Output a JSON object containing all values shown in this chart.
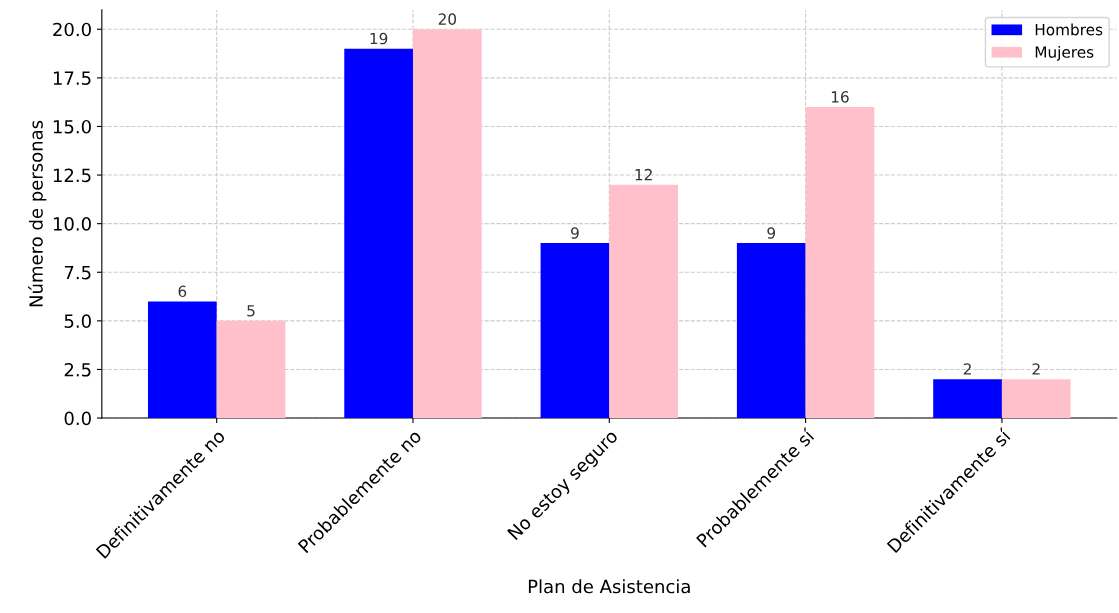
{
  "chart_data": {
    "type": "bar",
    "xlabel": "Plan de Asistencia",
    "ylabel": "Número de personas",
    "categories": [
      "Definitivamente no",
      "Probablemente no",
      "No estoy seguro",
      "Probablemente sí",
      "Definitivamente sí"
    ],
    "series": [
      {
        "name": "Hombres",
        "color": "#0000ff",
        "values": [
          6,
          19,
          9,
          9,
          2
        ]
      },
      {
        "name": "Mujeres",
        "color": "#ffc0cb",
        "values": [
          5,
          20,
          12,
          16,
          2
        ]
      }
    ],
    "ylim": [
      0,
      21
    ],
    "yticks": [
      {
        "value": 0,
        "label": "0.0"
      },
      {
        "value": 2.5,
        "label": "2.5"
      },
      {
        "value": 5,
        "label": "5.0"
      },
      {
        "value": 7.5,
        "label": "7.5"
      },
      {
        "value": 10,
        "label": "10.0"
      },
      {
        "value": 12.5,
        "label": "12.5"
      },
      {
        "value": 15,
        "label": "15.0"
      },
      {
        "value": 17.5,
        "label": "17.5"
      },
      {
        "value": 20,
        "label": "20.0"
      }
    ],
    "grid": true,
    "legend": "top right",
    "data_labels": true
  }
}
